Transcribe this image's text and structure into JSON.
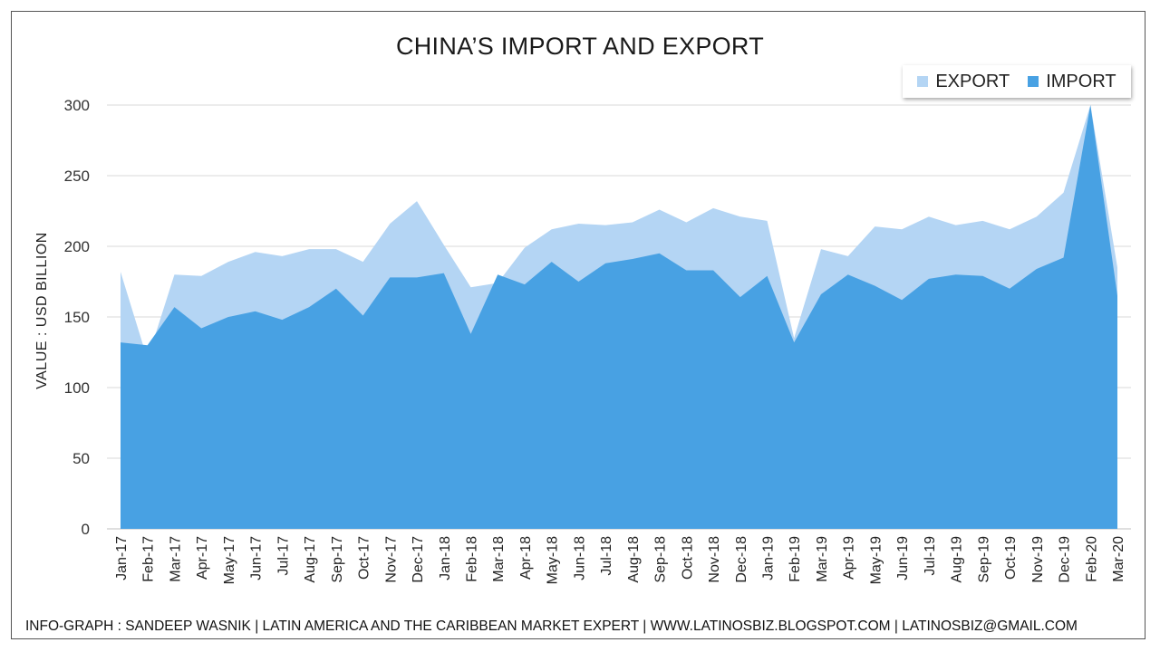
{
  "footer": "INFO-GRAPH : SANDEEP WASNIK | LATIN AMERICA AND THE CARIBBEAN MARKET EXPERT | WWW.LATINOSBIZ.BLOGSPOT.COM | LATINOSBIZ@GMAIL.COM",
  "colors": {
    "export": "#b4d5f4",
    "import": "#48a1e3",
    "grid": "#d9d9d9"
  },
  "chart_data": {
    "type": "area",
    "title": "CHINA’S IMPORT AND EXPORT",
    "ylabel": "VALUE : USD BILLION",
    "xlabel": "",
    "ylim": [
      0,
      300
    ],
    "yticks": [
      0,
      50,
      100,
      150,
      200,
      250,
      300
    ],
    "grid": true,
    "legend_position": "top-right",
    "categories": [
      "Jan-17",
      "Feb-17",
      "Mar-17",
      "Apr-17",
      "May-17",
      "Jun-17",
      "Jul-17",
      "Aug-17",
      "Sep-17",
      "Oct-17",
      "Nov-17",
      "Dec-17",
      "Jan-18",
      "Feb-18",
      "Mar-18",
      "Apr-18",
      "May-18",
      "Jun-18",
      "Jul-18",
      "Aug-18",
      "Sep-18",
      "Oct-18",
      "Nov-18",
      "Dec-18",
      "Jan-19",
      "Feb-19",
      "Mar-19",
      "Apr-19",
      "May-19",
      "Jun-19",
      "Jul-19",
      "Aug-19",
      "Sep-19",
      "Oct-19",
      "Nov-19",
      "Dec-19",
      "Feb-20",
      "Mar-20"
    ],
    "series": [
      {
        "name": "EXPORT",
        "values": [
          182,
          120,
          180,
          179,
          189,
          196,
          193,
          198,
          198,
          189,
          216,
          232,
          201,
          171,
          174,
          199,
          212,
          216,
          215,
          217,
          226,
          217,
          227,
          221,
          218,
          135,
          198,
          193,
          214,
          212,
          221,
          215,
          218,
          212,
          221,
          238,
          300,
          185
        ]
      },
      {
        "name": "IMPORT",
        "values": [
          132,
          130,
          157,
          142,
          150,
          154,
          148,
          157,
          170,
          151,
          178,
          178,
          181,
          138,
          180,
          173,
          189,
          175,
          188,
          191,
          195,
          183,
          183,
          164,
          179,
          132,
          166,
          180,
          172,
          162,
          177,
          180,
          179,
          170,
          184,
          192,
          300,
          165
        ]
      }
    ]
  }
}
